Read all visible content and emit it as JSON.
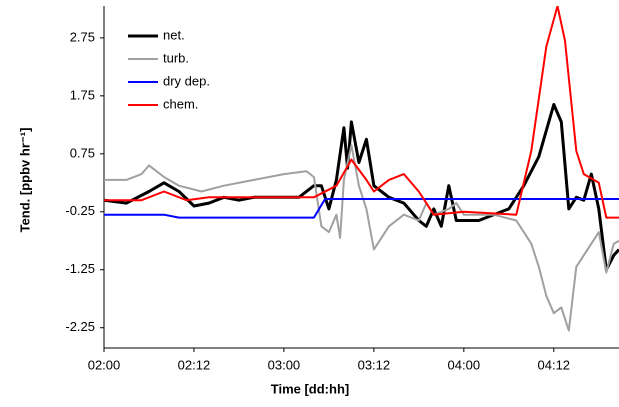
{
  "chart_data": {
    "type": "line",
    "x_label": "Time [dd:hh]",
    "y_label": "Tend. [ppbv hr⁻¹]",
    "xlim": [
      0,
      68.7
    ],
    "xticks": [
      {
        "value": 0,
        "label": "02:00"
      },
      {
        "value": 12,
        "label": "02:12"
      },
      {
        "value": 24,
        "label": "03:00"
      },
      {
        "value": 36,
        "label": "03:12"
      },
      {
        "value": 48,
        "label": "04:00"
      },
      {
        "value": 60,
        "label": "04:12"
      }
    ],
    "ylim": [
      -2.6,
      3.3
    ],
    "yticks": [
      -2.25,
      -1.25,
      -0.25,
      0.75,
      1.75,
      2.75
    ],
    "grid": false,
    "legend": "upper-left",
    "series": [
      {
        "name": "net.",
        "color": "#000000",
        "width": 3,
        "x": [
          0,
          3,
          6,
          8,
          10,
          12,
          14,
          16,
          18,
          20,
          26,
          28,
          29,
          30,
          31,
          32,
          32.5,
          33,
          34,
          35,
          36,
          38,
          40,
          42,
          43,
          44,
          45,
          46,
          47,
          50,
          54,
          56,
          58,
          60,
          61,
          62,
          63,
          64,
          65,
          66,
          67,
          68,
          68.7
        ],
        "values": [
          -0.05,
          -0.1,
          0.1,
          0.25,
          0.1,
          -0.15,
          -0.1,
          0,
          -0.05,
          0,
          0,
          0.2,
          0.2,
          -0.2,
          0.3,
          1.2,
          0.5,
          1.3,
          0.6,
          1.0,
          0.2,
          0,
          -0.1,
          -0.4,
          -0.5,
          -0.2,
          -0.5,
          0.2,
          -0.4,
          -0.4,
          -0.2,
          0.2,
          0.7,
          1.6,
          1.3,
          -0.2,
          0,
          -0.05,
          0.4,
          -0.2,
          -1.25,
          -1.0,
          -0.9
        ]
      },
      {
        "name": "turb.",
        "color": "#a0a0a0",
        "width": 2,
        "x": [
          0,
          3,
          5,
          6,
          8,
          10,
          13,
          16,
          20,
          24,
          27,
          28,
          29,
          30,
          31,
          31.5,
          32,
          33,
          34,
          35,
          36,
          38,
          40,
          42,
          43,
          44,
          46,
          47,
          48,
          52,
          55,
          57,
          58,
          59,
          60,
          61,
          62,
          63,
          65,
          66,
          67,
          68,
          68.7
        ],
        "values": [
          0.3,
          0.3,
          0.4,
          0.55,
          0.35,
          0.2,
          0.1,
          0.2,
          0.3,
          0.4,
          0.45,
          0.35,
          -0.5,
          -0.6,
          -0.3,
          -0.7,
          0.3,
          0.9,
          0.2,
          -0.2,
          -0.9,
          -0.5,
          -0.3,
          -0.4,
          -0.1,
          -0.3,
          -0.2,
          -0.1,
          -0.3,
          -0.3,
          -0.4,
          -0.8,
          -1.2,
          -1.7,
          -2.0,
          -1.9,
          -2.3,
          -1.2,
          -0.8,
          -0.6,
          -1.3,
          -0.8,
          -0.75
        ]
      },
      {
        "name": "dry dep.",
        "color": "#0000ff",
        "width": 2,
        "x": [
          0,
          8,
          10,
          28,
          29.5,
          68.7
        ],
        "values": [
          -0.3,
          -0.3,
          -0.35,
          -0.35,
          -0.03,
          -0.03
        ]
      },
      {
        "name": "chem.",
        "color": "#ff0000",
        "width": 2,
        "x": [
          0,
          5,
          8,
          11,
          14,
          28,
          31,
          33,
          35,
          36,
          38,
          40,
          42,
          44,
          48,
          55,
          57,
          59,
          60.5,
          61.5,
          63,
          64,
          66,
          67,
          68.7
        ],
        "values": [
          -0.05,
          -0.05,
          0.1,
          -0.05,
          0,
          0,
          0.2,
          0.65,
          0.3,
          0.1,
          0.3,
          0.4,
          0.1,
          -0.3,
          -0.25,
          -0.3,
          0.8,
          2.6,
          3.3,
          2.7,
          0.8,
          0.4,
          0.25,
          -0.35,
          -0.35
        ]
      }
    ]
  }
}
